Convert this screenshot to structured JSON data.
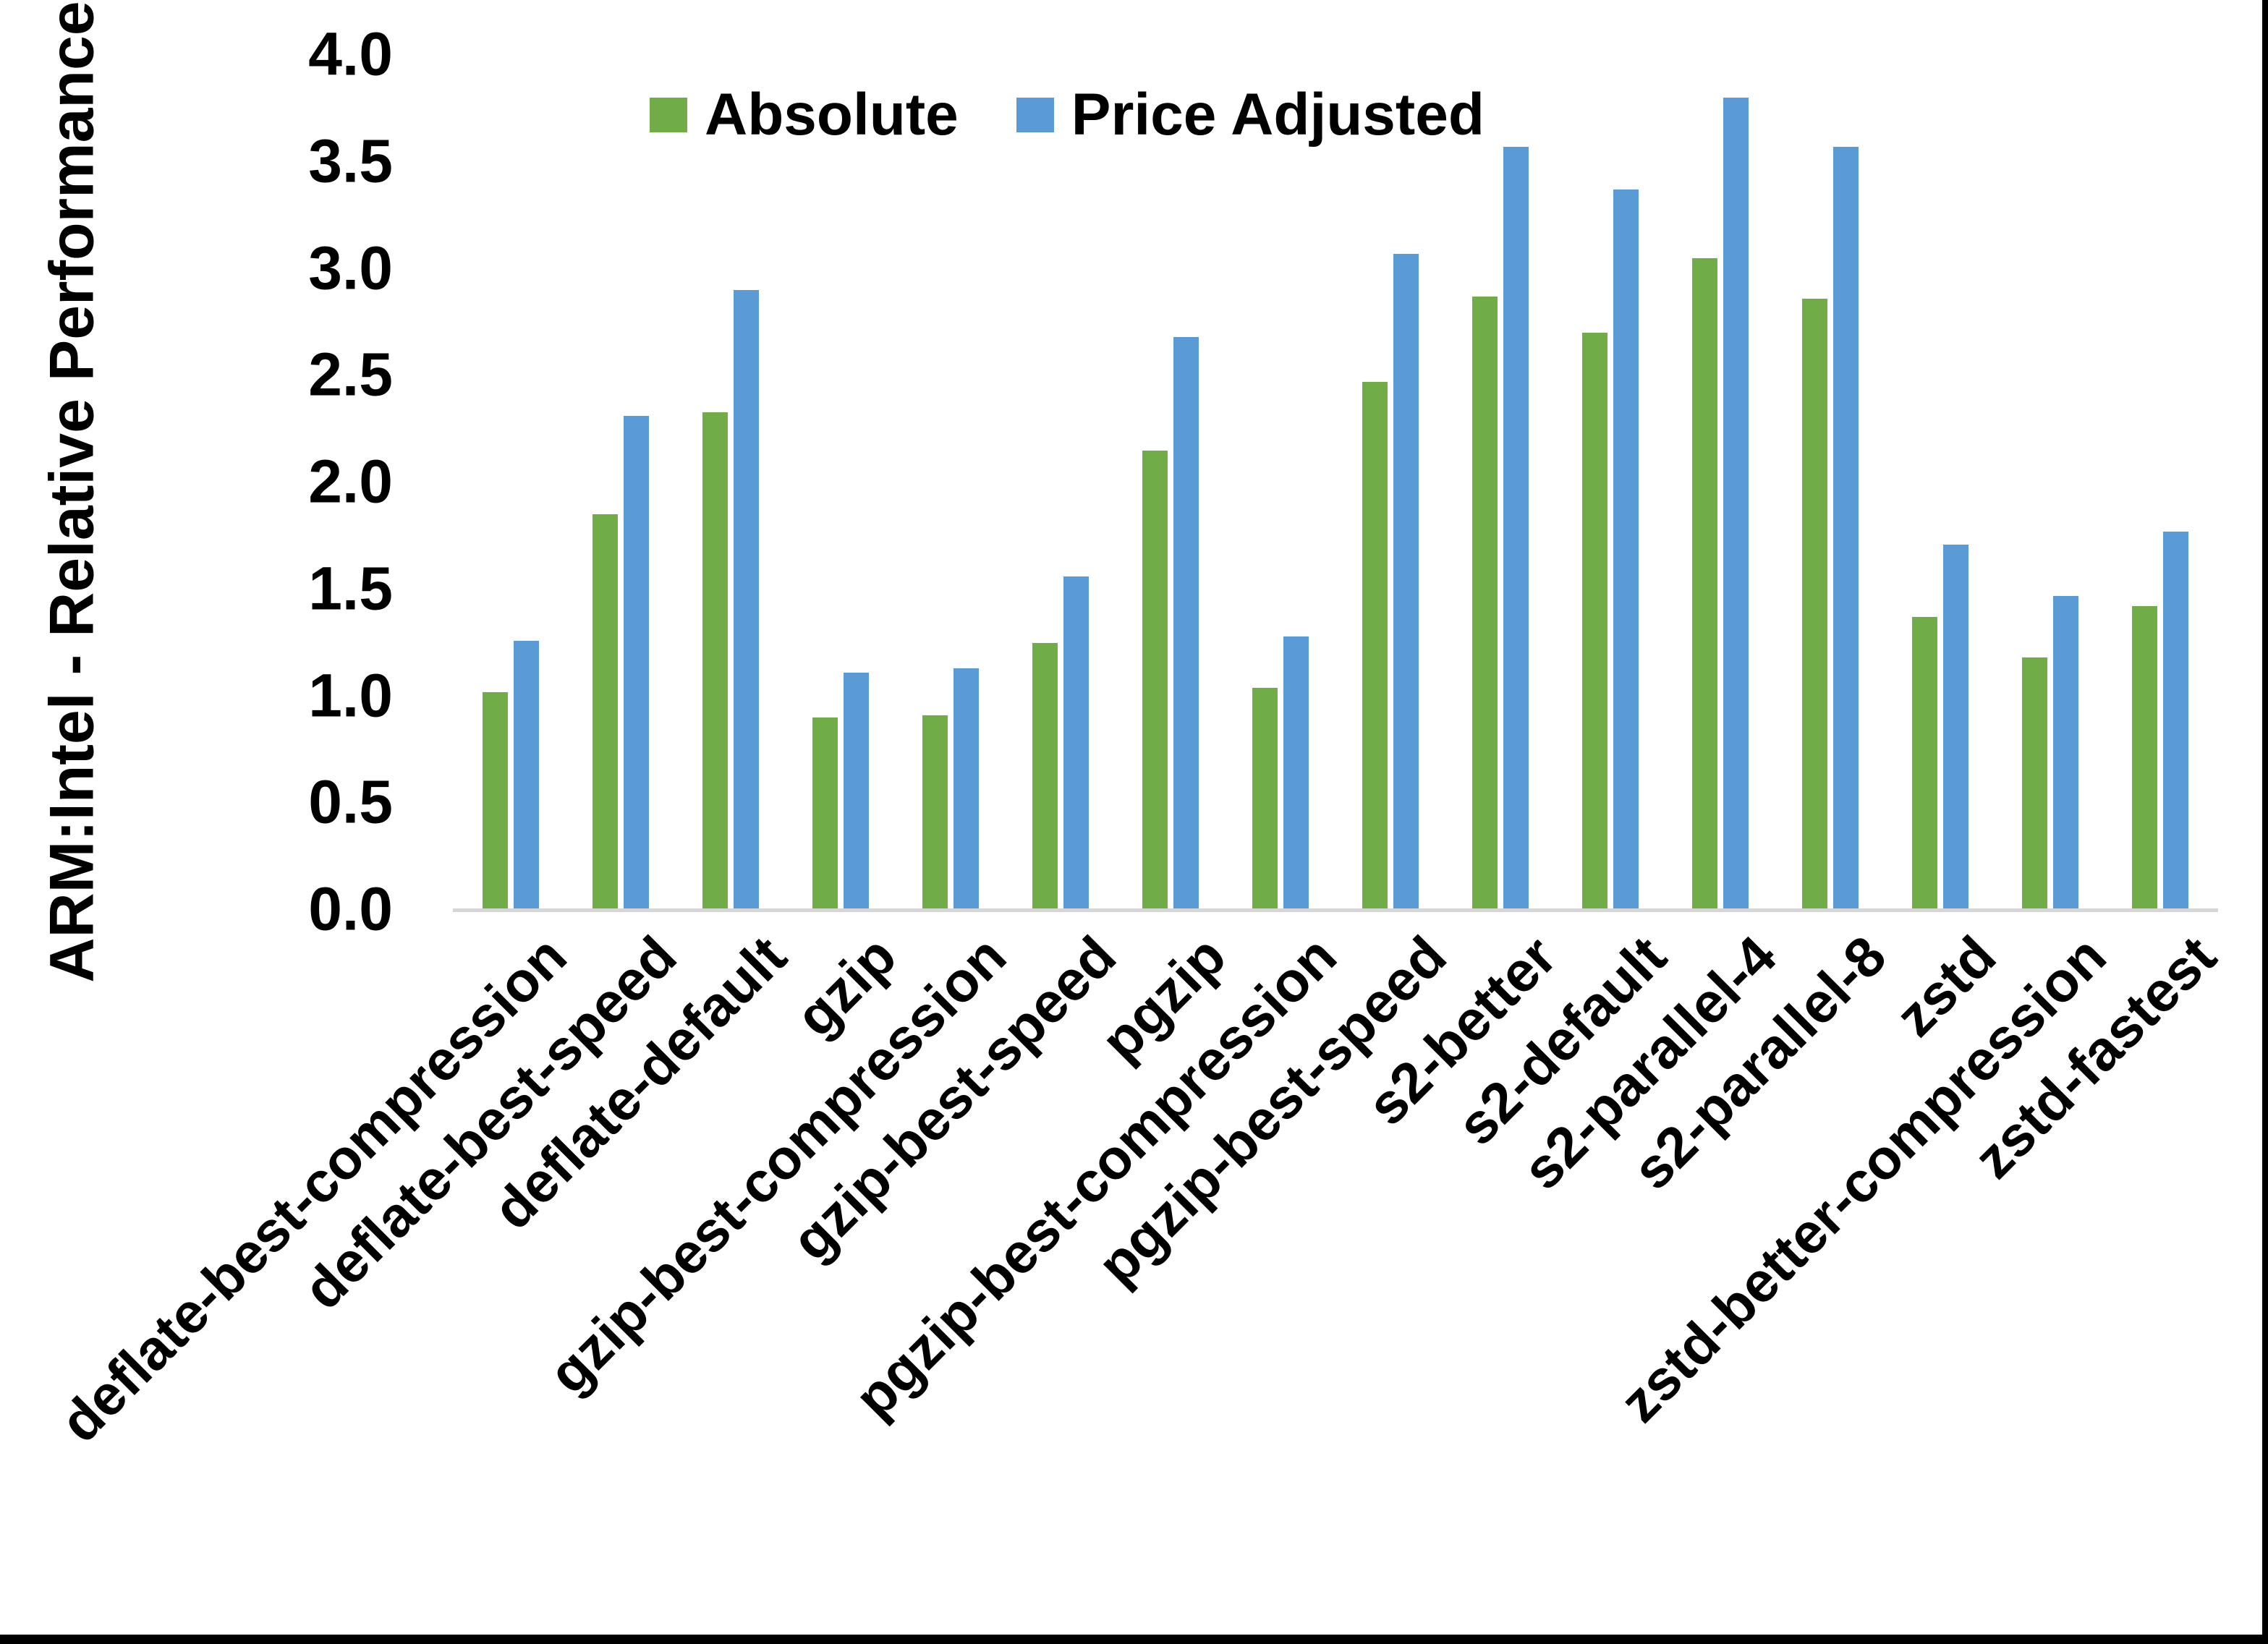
{
  "chart_data": {
    "type": "bar",
    "title": "",
    "ylabel": "ARM:Intel - Relative Performance",
    "xlabel": "",
    "ylim": [
      0.0,
      4.0
    ],
    "ytick_step": 0.5,
    "yticks": [
      "0.0",
      "0.5",
      "1.0",
      "1.5",
      "2.0",
      "2.5",
      "3.0",
      "3.5",
      "4.0"
    ],
    "grid": false,
    "legend_position": "top",
    "axis_line_color": "#d6d6d6",
    "categories": [
      "deflate-best-compression",
      "deflate-best-speed",
      "deflate-default",
      "gzip",
      "gzip-best-compression",
      "gzip-best-speed",
      "pgzip",
      "pgzip-best-compression",
      "pgzip-best-speed",
      "s2-better",
      "s2-default",
      "s2-parallel-4",
      "s2-parallel-8",
      "zstd",
      "zstd-better-compression",
      "zstd-fastest"
    ],
    "series": [
      {
        "name": "Absolute",
        "color": "#70AD47",
        "values": [
          1.02,
          1.85,
          2.33,
          0.9,
          0.91,
          1.25,
          2.15,
          1.04,
          2.47,
          2.87,
          2.7,
          3.05,
          2.86,
          1.37,
          1.18,
          1.42
        ]
      },
      {
        "name": "Price Adjusted",
        "color": "#5B9BD5",
        "values": [
          1.26,
          2.31,
          2.9,
          1.11,
          1.13,
          1.56,
          2.68,
          1.28,
          3.07,
          3.57,
          3.37,
          3.8,
          3.57,
          1.71,
          1.47,
          1.77
        ]
      }
    ]
  }
}
